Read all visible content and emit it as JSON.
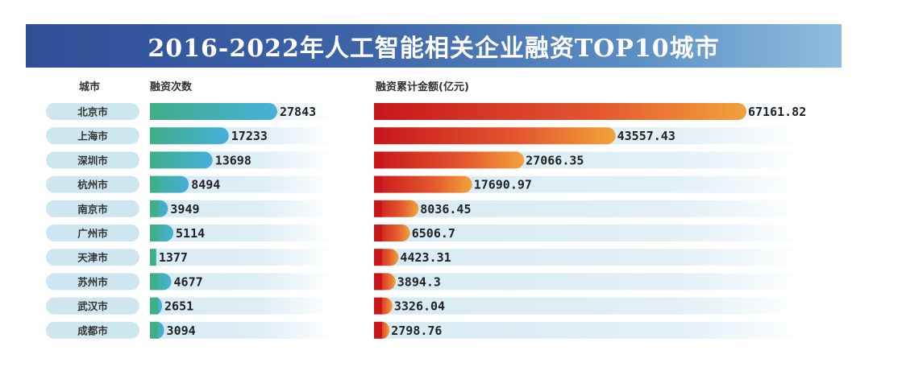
{
  "title": "2016-2022年人工智能相关企业融资TOP10城市",
  "headers": {
    "city": "城市",
    "count": "融资次数",
    "amount": "融资累计金额(亿元)"
  },
  "colors": {
    "title_bar_start": "#2f4e95",
    "title_bar_end": "#8fbde0",
    "city_pill": "#cde6ef",
    "count_bar_start": "#3fae8a",
    "count_bar_end": "#46b0d8",
    "amount_bar_start": "#c8161b",
    "amount_bar_end": "#f3a23a",
    "track": "#d7eaf3"
  },
  "chart_data": {
    "type": "bar",
    "categories": [
      "北京市",
      "上海市",
      "深圳市",
      "杭州市",
      "南京市",
      "广州市",
      "天津市",
      "苏州市",
      "武汉市",
      "成都市"
    ],
    "series": [
      {
        "name": "融资次数",
        "values": [
          27843,
          17233,
          13698,
          8494,
          3949,
          5114,
          1377,
          4677,
          2651,
          3094
        ]
      },
      {
        "name": "融资累计金额(亿元)",
        "values": [
          "67161.82",
          "43557.43",
          "27066.35",
          "17690.97",
          "8036.45",
          "6506.7",
          "4423.31",
          "3894.3",
          "3326.04",
          "2798.76"
        ]
      }
    ],
    "title": "2016-2022年人工智能相关企业融资TOP10城市"
  }
}
